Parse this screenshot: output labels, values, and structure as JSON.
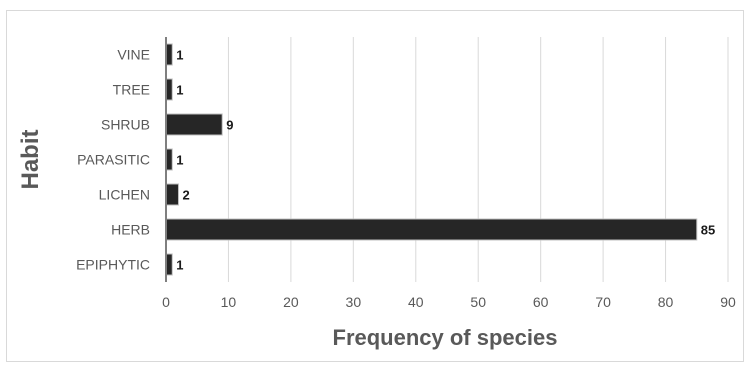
{
  "chart_data": {
    "type": "bar",
    "orientation": "horizontal",
    "categories": [
      "VINE",
      "TREE",
      "SHRUB",
      "PARASITIC",
      "LICHEN",
      "HERB",
      "EPIPHYTIC"
    ],
    "values": [
      1,
      1,
      9,
      1,
      2,
      85,
      1
    ],
    "data_labels": [
      "1",
      "1",
      "9",
      "1",
      "2",
      "85",
      "1"
    ],
    "xlabel": "Frequency of species",
    "ylabel": "Habit",
    "xlim": [
      0,
      90
    ],
    "x_ticks": [
      "0",
      "10",
      "20",
      "30",
      "40",
      "50",
      "60",
      "70",
      "80",
      "90"
    ],
    "grid": true,
    "bar_color": "#262626",
    "bar_border": "#bfbfbf"
  }
}
